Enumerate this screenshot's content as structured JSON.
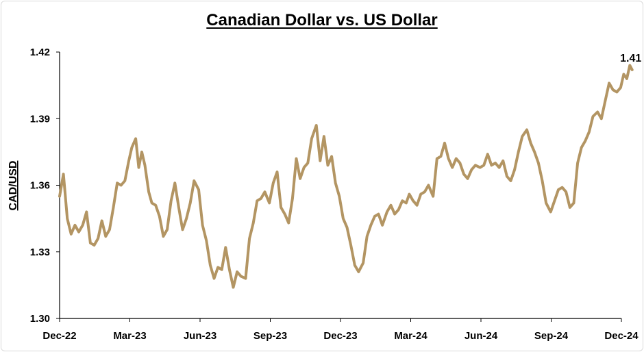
{
  "chart_data": {
    "type": "line",
    "title": "Canadian Dollar vs. US Dollar",
    "ylabel": "CAD/USD",
    "xlabel": "",
    "ylim": [
      1.3,
      1.42
    ],
    "yticks": [
      "1.42",
      "1.39",
      "1.36",
      "1.33",
      "1.30"
    ],
    "x_tick_labels": [
      "Dec-22",
      "Mar-23",
      "Jun-23",
      "Sep-23",
      "Dec-23",
      "Mar-24",
      "Jun-24",
      "Sep-24",
      "Dec-24"
    ],
    "x_range": [
      "2022-12",
      "2024-12"
    ],
    "grid": false,
    "legend": "none",
    "line_color": "#b39563",
    "last_value_label": "1.41",
    "series": [
      {
        "values": [
          [
            "2022-12-01",
            1.355
          ],
          [
            "2022-12-06",
            1.365
          ],
          [
            "2022-12-11",
            1.345
          ],
          [
            "2022-12-16",
            1.338
          ],
          [
            "2022-12-21",
            1.342
          ],
          [
            "2022-12-26",
            1.339
          ],
          [
            "2022-12-31",
            1.342
          ],
          [
            "2023-01-05",
            1.348
          ],
          [
            "2023-01-10",
            1.334
          ],
          [
            "2023-01-15",
            1.333
          ],
          [
            "2023-01-20",
            1.336
          ],
          [
            "2023-01-25",
            1.344
          ],
          [
            "2023-01-30",
            1.337
          ],
          [
            "2023-02-04",
            1.34
          ],
          [
            "2023-02-09",
            1.35
          ],
          [
            "2023-02-14",
            1.361
          ],
          [
            "2023-02-19",
            1.36
          ],
          [
            "2023-02-24",
            1.362
          ],
          [
            "2023-03-01",
            1.371
          ],
          [
            "2023-03-05",
            1.377
          ],
          [
            "2023-03-10",
            1.381
          ],
          [
            "2023-03-14",
            1.368
          ],
          [
            "2023-03-18",
            1.375
          ],
          [
            "2023-03-22",
            1.369
          ],
          [
            "2023-03-27",
            1.357
          ],
          [
            "2023-03-31",
            1.352
          ],
          [
            "2023-04-05",
            1.351
          ],
          [
            "2023-04-10",
            1.346
          ],
          [
            "2023-04-15",
            1.337
          ],
          [
            "2023-04-20",
            1.34
          ],
          [
            "2023-04-25",
            1.353
          ],
          [
            "2023-04-30",
            1.361
          ],
          [
            "2023-05-05",
            1.35
          ],
          [
            "2023-05-10",
            1.34
          ],
          [
            "2023-05-15",
            1.345
          ],
          [
            "2023-05-20",
            1.352
          ],
          [
            "2023-05-25",
            1.362
          ],
          [
            "2023-05-31",
            1.358
          ],
          [
            "2023-06-05",
            1.342
          ],
          [
            "2023-06-10",
            1.335
          ],
          [
            "2023-06-15",
            1.324
          ],
          [
            "2023-06-20",
            1.318
          ],
          [
            "2023-06-25",
            1.323
          ],
          [
            "2023-06-30",
            1.322
          ],
          [
            "2023-07-05",
            1.332
          ],
          [
            "2023-07-10",
            1.322
          ],
          [
            "2023-07-15",
            1.314
          ],
          [
            "2023-07-20",
            1.321
          ],
          [
            "2023-07-25",
            1.319
          ],
          [
            "2023-07-31",
            1.318
          ],
          [
            "2023-08-05",
            1.336
          ],
          [
            "2023-08-10",
            1.343
          ],
          [
            "2023-08-15",
            1.353
          ],
          [
            "2023-08-20",
            1.354
          ],
          [
            "2023-08-25",
            1.357
          ],
          [
            "2023-08-31",
            1.352
          ],
          [
            "2023-09-05",
            1.361
          ],
          [
            "2023-09-10",
            1.366
          ],
          [
            "2023-09-15",
            1.35
          ],
          [
            "2023-09-20",
            1.347
          ],
          [
            "2023-09-25",
            1.343
          ],
          [
            "2023-09-30",
            1.354
          ],
          [
            "2023-10-05",
            1.372
          ],
          [
            "2023-10-10",
            1.363
          ],
          [
            "2023-10-15",
            1.368
          ],
          [
            "2023-10-20",
            1.37
          ],
          [
            "2023-10-25",
            1.381
          ],
          [
            "2023-10-31",
            1.387
          ],
          [
            "2023-11-05",
            1.371
          ],
          [
            "2023-11-10",
            1.382
          ],
          [
            "2023-11-15",
            1.369
          ],
          [
            "2023-11-20",
            1.373
          ],
          [
            "2023-11-25",
            1.361
          ],
          [
            "2023-11-30",
            1.355
          ],
          [
            "2023-12-05",
            1.345
          ],
          [
            "2023-12-10",
            1.341
          ],
          [
            "2023-12-15",
            1.333
          ],
          [
            "2023-12-20",
            1.324
          ],
          [
            "2023-12-25",
            1.321
          ],
          [
            "2023-12-31",
            1.325
          ],
          [
            "2024-01-05",
            1.337
          ],
          [
            "2024-01-10",
            1.342
          ],
          [
            "2024-01-15",
            1.346
          ],
          [
            "2024-01-20",
            1.347
          ],
          [
            "2024-01-25",
            1.342
          ],
          [
            "2024-01-31",
            1.348
          ],
          [
            "2024-02-05",
            1.351
          ],
          [
            "2024-02-10",
            1.347
          ],
          [
            "2024-02-15",
            1.349
          ],
          [
            "2024-02-20",
            1.353
          ],
          [
            "2024-02-25",
            1.352
          ],
          [
            "2024-02-29",
            1.356
          ],
          [
            "2024-03-05",
            1.353
          ],
          [
            "2024-03-10",
            1.351
          ],
          [
            "2024-03-15",
            1.356
          ],
          [
            "2024-03-20",
            1.357
          ],
          [
            "2024-03-25",
            1.36
          ],
          [
            "2024-03-31",
            1.355
          ],
          [
            "2024-04-05",
            1.372
          ],
          [
            "2024-04-10",
            1.373
          ],
          [
            "2024-04-15",
            1.379
          ],
          [
            "2024-04-20",
            1.372
          ],
          [
            "2024-04-25",
            1.368
          ],
          [
            "2024-04-30",
            1.372
          ],
          [
            "2024-05-05",
            1.37
          ],
          [
            "2024-05-10",
            1.365
          ],
          [
            "2024-05-15",
            1.363
          ],
          [
            "2024-05-20",
            1.367
          ],
          [
            "2024-05-25",
            1.369
          ],
          [
            "2024-05-31",
            1.368
          ],
          [
            "2024-06-05",
            1.369
          ],
          [
            "2024-06-10",
            1.374
          ],
          [
            "2024-06-15",
            1.369
          ],
          [
            "2024-06-20",
            1.37
          ],
          [
            "2024-06-25",
            1.368
          ],
          [
            "2024-06-30",
            1.371
          ],
          [
            "2024-07-05",
            1.364
          ],
          [
            "2024-07-10",
            1.362
          ],
          [
            "2024-07-15",
            1.367
          ],
          [
            "2024-07-20",
            1.375
          ],
          [
            "2024-07-25",
            1.382
          ],
          [
            "2024-07-31",
            1.385
          ],
          [
            "2024-08-05",
            1.379
          ],
          [
            "2024-08-10",
            1.375
          ],
          [
            "2024-08-15",
            1.37
          ],
          [
            "2024-08-20",
            1.362
          ],
          [
            "2024-08-25",
            1.352
          ],
          [
            "2024-08-31",
            1.348
          ],
          [
            "2024-09-05",
            1.353
          ],
          [
            "2024-09-10",
            1.358
          ],
          [
            "2024-09-15",
            1.359
          ],
          [
            "2024-09-20",
            1.357
          ],
          [
            "2024-09-25",
            1.35
          ],
          [
            "2024-09-30",
            1.352
          ],
          [
            "2024-10-05",
            1.37
          ],
          [
            "2024-10-10",
            1.377
          ],
          [
            "2024-10-15",
            1.38
          ],
          [
            "2024-10-20",
            1.384
          ],
          [
            "2024-10-25",
            1.391
          ],
          [
            "2024-10-31",
            1.393
          ],
          [
            "2024-11-05",
            1.39
          ],
          [
            "2024-11-10",
            1.398
          ],
          [
            "2024-11-15",
            1.406
          ],
          [
            "2024-11-20",
            1.403
          ],
          [
            "2024-11-25",
            1.402
          ],
          [
            "2024-11-30",
            1.404
          ],
          [
            "2024-12-04",
            1.41
          ],
          [
            "2024-12-08",
            1.408
          ],
          [
            "2024-12-12",
            1.414
          ],
          [
            "2024-12-15",
            1.412
          ]
        ]
      }
    ]
  }
}
